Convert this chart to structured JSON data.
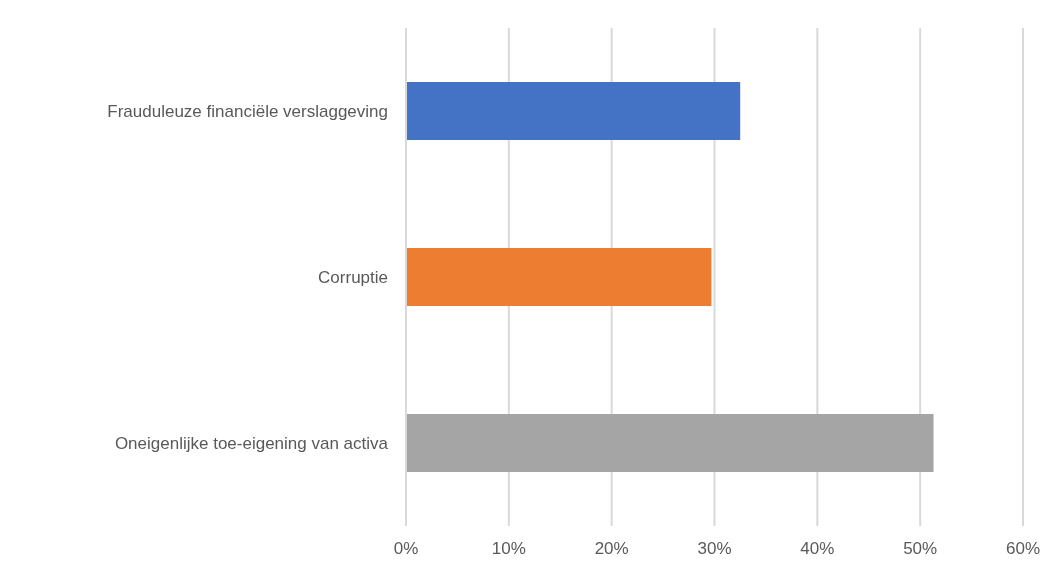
{
  "chart_data": {
    "type": "bar",
    "orientation": "horizontal",
    "categories": [
      "Frauduleuze financiële verslaggeving",
      "Corruptie",
      "Oneigenlijke toe-eigening van activa"
    ],
    "values": [
      32.5,
      29.7,
      51.3
    ],
    "colors": [
      "#4472c4",
      "#ed7d31",
      "#a5a5a5"
    ],
    "xlim": [
      0,
      60
    ],
    "xticks": [
      {
        "value": 0,
        "label": "0%"
      },
      {
        "value": 10,
        "label": "10%"
      },
      {
        "value": 20,
        "label": "20%"
      },
      {
        "value": 30,
        "label": "30%"
      },
      {
        "value": 40,
        "label": "40%"
      },
      {
        "value": 50,
        "label": "50%"
      },
      {
        "value": 60,
        "label": "60%"
      }
    ],
    "grid": "x"
  }
}
